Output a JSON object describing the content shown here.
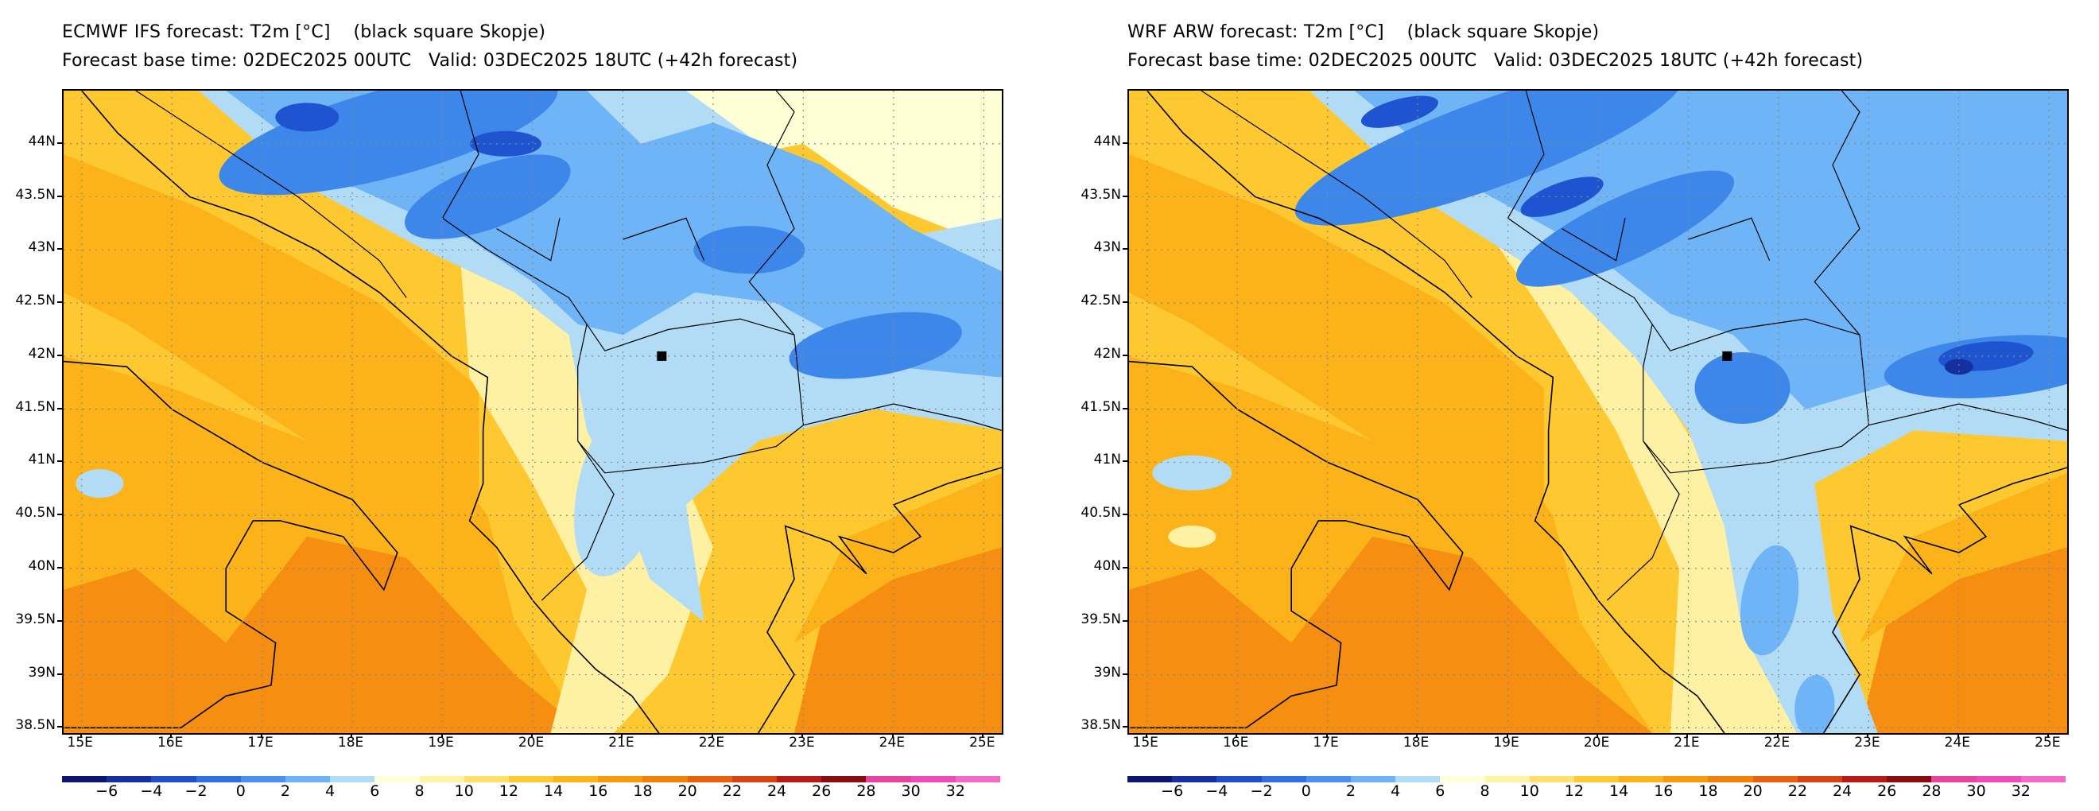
{
  "panels": [
    {
      "title": "ECMWF IFS forecast: T2m [°C]    (black square Skopje)",
      "subtitle": "Forecast base time: 02DEC2025 00UTC   Valid: 03DEC2025 18UTC (+42h forecast)",
      "model": "ecmwf"
    },
    {
      "title": "WRF ARW forecast: T2m [°C]    (black square Skopje)",
      "subtitle": "Forecast base time: 02DEC2025 00UTC   Valid: 03DEC2025 18UTC (+42h forecast)",
      "model": "wrf"
    }
  ],
  "axes": {
    "lon_min": 14.8,
    "lon_max": 25.2,
    "lat_min": 38.45,
    "lat_max": 44.5,
    "lon_labels": [
      "15E",
      "16E",
      "17E",
      "18E",
      "19E",
      "20E",
      "21E",
      "22E",
      "23E",
      "24E",
      "25E"
    ],
    "lon_values": [
      15,
      16,
      17,
      18,
      19,
      20,
      21,
      22,
      23,
      24,
      25
    ],
    "lat_labels": [
      "44N",
      "43.5N",
      "43N",
      "42.5N",
      "42N",
      "41.5N",
      "41N",
      "40.5N",
      "40N",
      "39.5N",
      "39N",
      "38.5N"
    ],
    "lat_values": [
      44,
      43.5,
      43,
      42.5,
      42,
      41.5,
      41,
      40.5,
      40,
      39.5,
      39,
      38.5
    ]
  },
  "marker": {
    "name": "Skopje",
    "lon": 21.43,
    "lat": 42.0
  },
  "colorbar": {
    "labels": [
      "−6",
      "−4",
      "−2",
      "0",
      "2",
      "4",
      "6",
      "8",
      "10",
      "12",
      "14",
      "16",
      "18",
      "20",
      "22",
      "24",
      "26",
      "28",
      "30",
      "32"
    ],
    "colors": [
      "#0a1670",
      "#15309e",
      "#1e4fc8",
      "#2f6fe0",
      "#4b90ef",
      "#6db3f6",
      "#b0dcf6",
      "#ffffd8",
      "#fff4a6",
      "#fee06a",
      "#fec933",
      "#fbb417",
      "#f99a0c",
      "#f18107",
      "#e9620b",
      "#d74212",
      "#b51a16",
      "#8b0c10",
      "#e8449e",
      "#f04cb7",
      "#f36bc6"
    ]
  },
  "palette": {
    "sea_warm": "#fbb319",
    "sea_hot": "#f68e12",
    "mid": "#fec830",
    "light": "#fff1a3",
    "pale": "#ffffd6",
    "cool1": "#b2dcf6",
    "cool2": "#6fb4f6",
    "cool3": "#3d86ea",
    "cool4": "#1f54d0",
    "cool5": "#15309e"
  }
}
